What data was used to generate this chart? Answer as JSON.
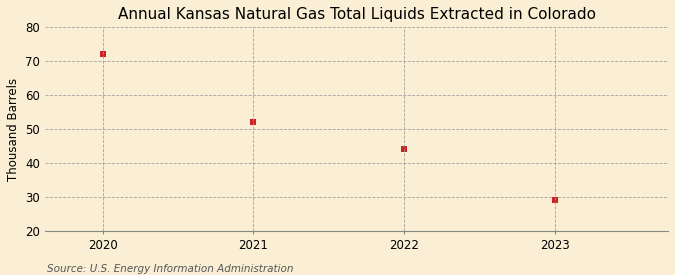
{
  "title": "Annual Kansas Natural Gas Total Liquids Extracted in Colorado",
  "ylabel": "Thousand Barrels",
  "source": "Source: U.S. Energy Information Administration",
  "x": [
    2020,
    2021,
    2022,
    2023
  ],
  "y": [
    72,
    52,
    44,
    29
  ],
  "xlim": [
    2019.62,
    2023.75
  ],
  "ylim": [
    20,
    80
  ],
  "yticks": [
    20,
    30,
    40,
    50,
    60,
    70,
    80
  ],
  "xticks": [
    2020,
    2021,
    2022,
    2023
  ],
  "marker_color": "#cc2222",
  "marker": "s",
  "marker_size": 4,
  "bg_color": "#faefd4",
  "grid_color": "#999999",
  "title_fontsize": 11,
  "label_fontsize": 8.5,
  "tick_fontsize": 8.5,
  "source_fontsize": 7.5
}
